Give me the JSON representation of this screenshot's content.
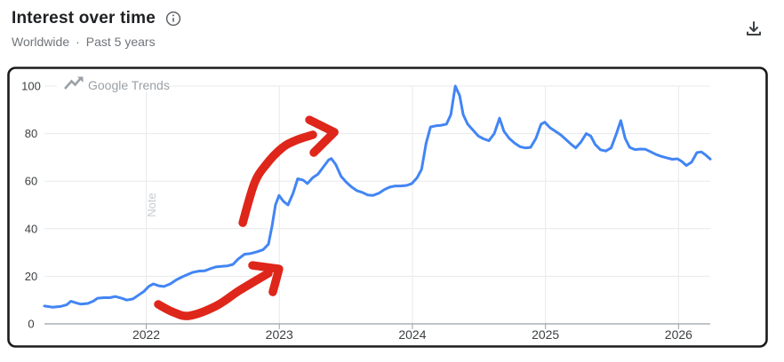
{
  "header": {
    "title": "Interest over time",
    "subtitle_location": "Worldwide",
    "subtitle_separator": "·",
    "subtitle_period": "Past 5 years"
  },
  "chart": {
    "watermark": "Google Trends",
    "note_label": "Note"
  },
  "colors": {
    "line": "#4285f4",
    "annotation": "#df261b",
    "grid": "#e8e9eb",
    "axis": "#9aa0a6",
    "tick_label": "#3c4043",
    "watermark": "#9aa0a6",
    "note": "#c7cacd",
    "frame_border": "#1b1b1b",
    "title": "#202124",
    "subtitle": "#70757a",
    "icon": "#3c4043"
  },
  "chart_data": {
    "type": "line",
    "title": "Interest over time",
    "xlabel": "",
    "ylabel": "",
    "grid": true,
    "x_range": [
      2021.235,
      2026.238
    ],
    "y_range": [
      0,
      100
    ],
    "x_ticks": [
      2022,
      2023,
      2024,
      2025,
      2026
    ],
    "y_ticks": [
      0,
      20,
      40,
      60,
      80,
      100
    ],
    "series": [
      {
        "name": "interest",
        "color": "#4285f4",
        "points": [
          [
            2021.235,
            7.5
          ],
          [
            2021.295,
            7
          ],
          [
            2021.355,
            7.3
          ],
          [
            2021.401,
            8
          ],
          [
            2021.434,
            9.5
          ],
          [
            2021.474,
            8.8
          ],
          [
            2021.508,
            8.3
          ],
          [
            2021.561,
            8.6
          ],
          [
            2021.601,
            9.5
          ],
          [
            2021.634,
            10.8
          ],
          [
            2021.681,
            11
          ],
          [
            2021.727,
            11
          ],
          [
            2021.767,
            11.5
          ],
          [
            2021.814,
            10.8
          ],
          [
            2021.854,
            10
          ],
          [
            2021.9,
            10.5
          ],
          [
            2021.94,
            12
          ],
          [
            2021.98,
            13.5
          ],
          [
            2022.02,
            15.8
          ],
          [
            2022.053,
            16.8
          ],
          [
            2022.093,
            16
          ],
          [
            2022.133,
            15.7
          ],
          [
            2022.18,
            16.8
          ],
          [
            2022.226,
            18.5
          ],
          [
            2022.273,
            19.8
          ],
          [
            2022.313,
            20.8
          ],
          [
            2022.353,
            21.7
          ],
          [
            2022.399,
            22.2
          ],
          [
            2022.439,
            22.3
          ],
          [
            2022.486,
            23.3
          ],
          [
            2022.526,
            24
          ],
          [
            2022.572,
            24.2
          ],
          [
            2022.612,
            24.4
          ],
          [
            2022.652,
            25
          ],
          [
            2022.692,
            27.3
          ],
          [
            2022.739,
            29.3
          ],
          [
            2022.785,
            29.6
          ],
          [
            2022.832,
            30.3
          ],
          [
            2022.878,
            31.2
          ],
          [
            2022.918,
            33.5
          ],
          [
            2022.945,
            41
          ],
          [
            2022.971,
            50
          ],
          [
            2022.998,
            54
          ],
          [
            2023.031,
            51.5
          ],
          [
            2023.065,
            50
          ],
          [
            2023.104,
            55
          ],
          [
            2023.138,
            61
          ],
          [
            2023.178,
            60.5
          ],
          [
            2023.211,
            59
          ],
          [
            2023.251,
            61.5
          ],
          [
            2023.291,
            63
          ],
          [
            2023.331,
            66
          ],
          [
            2023.371,
            69
          ],
          [
            2023.391,
            69.5
          ],
          [
            2023.424,
            67
          ],
          [
            2023.464,
            62
          ],
          [
            2023.504,
            59.5
          ],
          [
            2023.544,
            57.5
          ],
          [
            2023.583,
            56
          ],
          [
            2023.623,
            55.3
          ],
          [
            2023.663,
            54.2
          ],
          [
            2023.703,
            54
          ],
          [
            2023.75,
            55
          ],
          [
            2023.79,
            56.5
          ],
          [
            2023.83,
            57.5
          ],
          [
            2023.87,
            58
          ],
          [
            2023.91,
            58
          ],
          [
            2023.956,
            58.2
          ],
          [
            2023.996,
            59
          ],
          [
            2024.036,
            61.5
          ],
          [
            2024.069,
            65
          ],
          [
            2024.103,
            76
          ],
          [
            2024.136,
            82.8
          ],
          [
            2024.176,
            83.3
          ],
          [
            2024.216,
            83.5
          ],
          [
            2024.256,
            84
          ],
          [
            2024.289,
            88
          ],
          [
            2024.322,
            100
          ],
          [
            2024.355,
            96
          ],
          [
            2024.382,
            88
          ],
          [
            2024.415,
            84
          ],
          [
            2024.455,
            81.5
          ],
          [
            2024.495,
            79
          ],
          [
            2024.535,
            77.8
          ],
          [
            2024.575,
            77
          ],
          [
            2024.615,
            80
          ],
          [
            2024.655,
            86.5
          ],
          [
            2024.688,
            81
          ],
          [
            2024.728,
            78
          ],
          [
            2024.768,
            76
          ],
          [
            2024.808,
            74.5
          ],
          [
            2024.848,
            74
          ],
          [
            2024.888,
            74.2
          ],
          [
            2024.928,
            78
          ],
          [
            2024.967,
            84
          ],
          [
            2024.994,
            84.8
          ],
          [
            2025.034,
            82.5
          ],
          [
            2025.074,
            81
          ],
          [
            2025.114,
            79.5
          ],
          [
            2025.154,
            77.5
          ],
          [
            2025.193,
            75.5
          ],
          [
            2025.227,
            74
          ],
          [
            2025.267,
            76.5
          ],
          [
            2025.306,
            80
          ],
          [
            2025.34,
            79
          ],
          [
            2025.373,
            75.5
          ],
          [
            2025.413,
            73.2
          ],
          [
            2025.453,
            72.7
          ],
          [
            2025.493,
            74
          ],
          [
            2025.533,
            80
          ],
          [
            2025.566,
            85.5
          ],
          [
            2025.599,
            78
          ],
          [
            2025.633,
            74.2
          ],
          [
            2025.673,
            73.3
          ],
          [
            2025.712,
            73.5
          ],
          [
            2025.752,
            73.4
          ],
          [
            2025.792,
            72.3
          ],
          [
            2025.832,
            71.2
          ],
          [
            2025.872,
            70.4
          ],
          [
            2025.912,
            69.8
          ],
          [
            2025.952,
            69.2
          ],
          [
            2025.992,
            69.4
          ],
          [
            2026.025,
            68.3
          ],
          [
            2026.058,
            66.6
          ],
          [
            2026.098,
            68
          ],
          [
            2026.138,
            72
          ],
          [
            2026.171,
            72.3
          ],
          [
            2026.204,
            71
          ],
          [
            2026.238,
            69.3
          ]
        ]
      }
    ],
    "annotations": [
      {
        "name": "hand-drawn-arrow-upper",
        "type": "arrow",
        "color": "#df261b",
        "shaft": [
          [
            2022.725,
            42.5
          ],
          [
            2022.812,
            59
          ],
          [
            2022.898,
            66.8
          ],
          [
            2023.019,
            73.9
          ],
          [
            2023.125,
            77.2
          ],
          [
            2023.252,
            79.5
          ]
        ],
        "head": [
          [
            2023.226,
            85.8
          ],
          [
            2023.413,
            80.6
          ],
          [
            2023.259,
            72
          ]
        ]
      },
      {
        "name": "hand-drawn-arrow-lower",
        "type": "arrow",
        "color": "#df261b",
        "shaft": [
          [
            2022.09,
            8.2
          ],
          [
            2022.204,
            4.9
          ],
          [
            2022.324,
            3.4
          ],
          [
            2022.524,
            7.5
          ],
          [
            2022.705,
            14.2
          ],
          [
            2022.918,
            21.3
          ]
        ],
        "head": [
          [
            2022.798,
            24.6
          ],
          [
            2022.998,
            23.1
          ],
          [
            2022.951,
            13.4
          ]
        ]
      }
    ]
  }
}
